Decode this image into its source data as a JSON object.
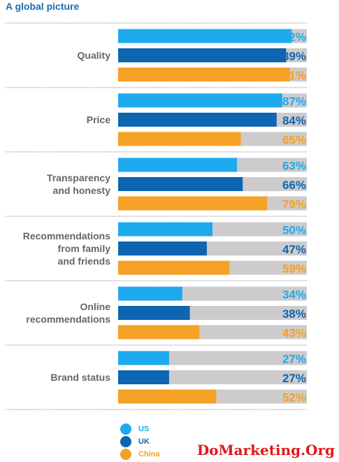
{
  "title": "A global picture",
  "watermark": "DoMarketing.Org",
  "colors": {
    "US": "#1eaaee",
    "UK": "#0e65b1",
    "China": "#f5a125",
    "track": "#cdcbcb",
    "divider": "#8a8a8a"
  },
  "chart_data": {
    "type": "bar",
    "orientation": "horizontal",
    "title": "A global picture",
    "categories": [
      "Quality",
      "Price",
      "Transparency and honesty",
      "Recommendations from family and friends",
      "Online recommendations",
      "Brand status"
    ],
    "category_lines": [
      [
        "Quality"
      ],
      [
        "Price"
      ],
      [
        "Transparency",
        "and honesty"
      ],
      [
        "Recommendations",
        "from family",
        "and friends"
      ],
      [
        "Online",
        "recommendations"
      ],
      [
        "Brand status"
      ]
    ],
    "series": [
      {
        "name": "US",
        "values": [
          92,
          87,
          63,
          50,
          34,
          27
        ],
        "labels": [
          "92%",
          "87%",
          "63%",
          "50%",
          "34%",
          "27%"
        ]
      },
      {
        "name": "UK",
        "values": [
          89,
          84,
          66,
          47,
          38,
          27
        ],
        "labels": [
          "89%",
          "84%",
          "66%",
          "47%",
          "38%",
          "27%"
        ]
      },
      {
        "name": "China",
        "values": [
          91,
          65,
          79,
          59,
          43,
          52
        ],
        "labels": [
          "91%",
          "65%",
          "79%",
          "59%",
          "43%",
          "52%"
        ]
      }
    ],
    "xlim": [
      0,
      100
    ],
    "grid": false,
    "legend": "bottom"
  }
}
